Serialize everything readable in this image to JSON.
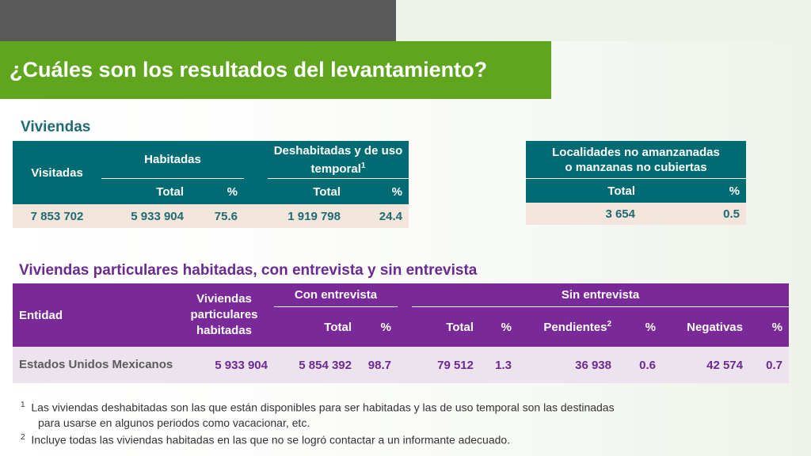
{
  "title": "¿Cuáles son los resultados del levantamiento?",
  "viviendas": {
    "section_title": "Viviendas",
    "visitadas_header": "Visitadas",
    "habitadas_header": "Habitadas",
    "deshabitadas_header": "Deshabitadas y de uso temporal",
    "deshabitadas_sup": "1",
    "total_label": "Total",
    "pct_label": "%",
    "row": {
      "visitadas": "7 853 702",
      "habitadas_total": "5 933 904",
      "habitadas_pct": "75.6",
      "deshabitadas_total": "1 919 798",
      "deshabitadas_pct": "24.4"
    }
  },
  "localidades": {
    "header_line1": "Localidades no amanzanadas",
    "header_line2": "o manzanas no cubiertas",
    "total_label": "Total",
    "pct_label": "%",
    "total": "3 654",
    "pct": "0.5"
  },
  "particulares": {
    "section_title": "Viviendas particulares habitadas, con entrevista y sin entrevista",
    "entidad_header": "Entidad",
    "viviendas_header": "Viviendas particulares habitadas",
    "con_header": "Con entrevista",
    "sin_header": "Sin entrevista",
    "total_label": "Total",
    "pct_label": "%",
    "pendientes_label": "Pendientes",
    "pendientes_sup": "2",
    "negativas_label": "Negativas",
    "row": {
      "entidad": "Estados Unidos Mexicanos",
      "viviendas": "5 933 904",
      "con_total": "5 854 392",
      "con_pct": "98.7",
      "sin_total": "79 512",
      "sin_pct": "1.3",
      "pendientes": "36 938",
      "pendientes_pct": "0.6",
      "negativas": "42 574",
      "negativas_pct": "0.7"
    }
  },
  "footnotes": {
    "n1_marker": "1",
    "n1_line1": "Las viviendas deshabitadas son las que están disponibles para ser habitadas y las de uso temporal son las destinadas",
    "n1_line2": "para usarse en algunos periodos como vacacionar, etc.",
    "n2_marker": "2",
    "n2_text": "Incluye todas las viviendas habitadas en las que no se logró contactar a un informante adecuado."
  }
}
